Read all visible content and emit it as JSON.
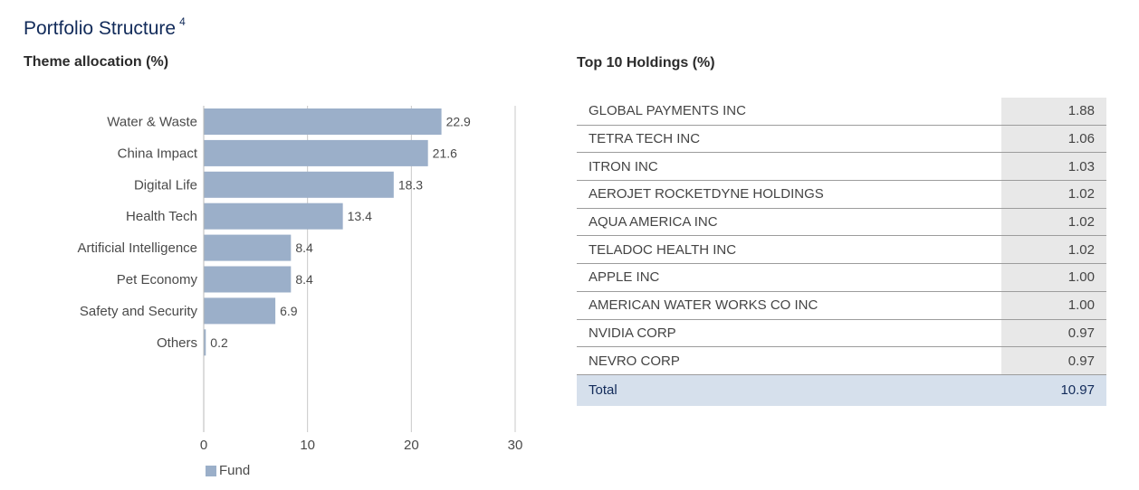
{
  "page": {
    "title": "Portfolio Structure",
    "title_footnote": "4"
  },
  "colors": {
    "bar": "#9bafc9",
    "title": "#122b5a",
    "grid": "#c8c8c8",
    "total_row": "#d6e0ec",
    "value_column": "#e8e8e8"
  },
  "chart_data": {
    "type": "bar",
    "orientation": "horizontal",
    "title": "Theme allocation (%)",
    "categories": [
      "Water & Waste",
      "China Impact",
      "Digital Life",
      "Health Tech",
      "Artificial Intelligence",
      "Pet Economy",
      "Safety and Security",
      "Others"
    ],
    "values": [
      22.9,
      21.6,
      18.3,
      13.4,
      8.4,
      8.4,
      6.9,
      0.2
    ],
    "value_labels": [
      "22.9",
      "21.6",
      "18.3",
      "13.4",
      "8.4",
      "8.4",
      "6.9",
      "0.2"
    ],
    "series": [
      {
        "name": "Fund",
        "values": [
          22.9,
          21.6,
          18.3,
          13.4,
          8.4,
          8.4,
          6.9,
          0.2
        ]
      }
    ],
    "xlim": [
      0,
      30
    ],
    "xticks": [
      "0",
      "10",
      "20",
      "30"
    ],
    "grid": true,
    "legend_position": "bottom-left",
    "legend": [
      "Fund"
    ]
  },
  "holdings": {
    "title": "Top 10 Holdings (%)",
    "rows": [
      {
        "name": "GLOBAL PAYMENTS INC",
        "value": "1.88"
      },
      {
        "name": "TETRA TECH INC",
        "value": "1.06"
      },
      {
        "name": "ITRON INC",
        "value": "1.03"
      },
      {
        "name": "AEROJET ROCKETDYNE HOLDINGS",
        "value": "1.02"
      },
      {
        "name": "AQUA AMERICA INC",
        "value": "1.02"
      },
      {
        "name": "TELADOC HEALTH INC",
        "value": "1.02"
      },
      {
        "name": "APPLE INC",
        "value": "1.00"
      },
      {
        "name": "AMERICAN WATER WORKS CO INC",
        "value": "1.00"
      },
      {
        "name": "NVIDIA CORP",
        "value": "0.97"
      },
      {
        "name": "NEVRO CORP",
        "value": "0.97"
      }
    ],
    "total": {
      "name": "Total",
      "value": "10.97"
    }
  }
}
